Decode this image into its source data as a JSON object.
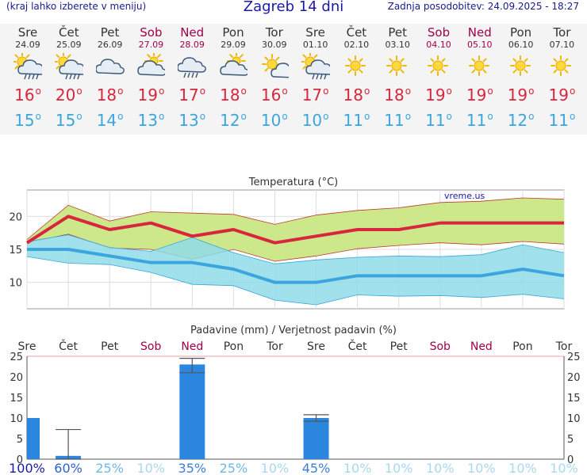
{
  "header": {
    "menu_hint": "(kraj lahko izberete v meniju)",
    "title": "Zagreb 14 dni",
    "updated": "Zadnja posodobitev: 24.09.2025 - 18:27"
  },
  "days": [
    {
      "name": "Sre",
      "date": "24.09",
      "weekend": false,
      "icon": "sun-cloud-rain-icon",
      "tmax": "16",
      "tmin": "15"
    },
    {
      "name": "Čet",
      "date": "25.09",
      "weekend": false,
      "icon": "sun-cloud-rain-icon",
      "tmax": "20",
      "tmin": "15"
    },
    {
      "name": "Pet",
      "date": "26.09",
      "weekend": false,
      "icon": "cloud-icon",
      "tmax": "18",
      "tmin": "14"
    },
    {
      "name": "Sob",
      "date": "27.09",
      "weekend": true,
      "icon": "sun-cloud-icon",
      "tmax": "19",
      "tmin": "13"
    },
    {
      "name": "Ned",
      "date": "28.09",
      "weekend": true,
      "icon": "cloud-rain-icon",
      "tmax": "17",
      "tmin": "13"
    },
    {
      "name": "Pon",
      "date": "29.09",
      "weekend": false,
      "icon": "sun-cloud-icon",
      "tmax": "18",
      "tmin": "12"
    },
    {
      "name": "Tor",
      "date": "30.09",
      "weekend": false,
      "icon": "sun-small-cloud-icon",
      "tmax": "16",
      "tmin": "10"
    },
    {
      "name": "Sre",
      "date": "01.10",
      "weekend": false,
      "icon": "sun-cloud-rain-icon",
      "tmax": "17",
      "tmin": "10"
    },
    {
      "name": "Čet",
      "date": "02.10",
      "weekend": false,
      "icon": "sun-icon",
      "tmax": "18",
      "tmin": "11"
    },
    {
      "name": "Pet",
      "date": "03.10",
      "weekend": false,
      "icon": "sun-icon",
      "tmax": "18",
      "tmin": "11"
    },
    {
      "name": "Sob",
      "date": "04.10",
      "weekend": true,
      "icon": "sun-icon",
      "tmax": "19",
      "tmin": "11"
    },
    {
      "name": "Ned",
      "date": "05.10",
      "weekend": true,
      "icon": "sun-icon",
      "tmax": "19",
      "tmin": "11"
    },
    {
      "name": "Pon",
      "date": "06.10",
      "weekend": false,
      "icon": "sun-icon",
      "tmax": "19",
      "tmin": "12"
    },
    {
      "name": "Tor",
      "date": "07.10",
      "weekend": false,
      "icon": "sun-icon",
      "tmax": "19",
      "tmin": "11"
    }
  ],
  "colors": {
    "max": "#d7263d",
    "min": "#3aa6dd",
    "maxband": "#cde88a",
    "minband": "#8fdce8",
    "bar": "#2b86e0",
    "weekend": "#a0004a"
  },
  "chart_data": [
    {
      "type": "line",
      "title": "Temperatura (°C)",
      "watermark": "vreme.us",
      "x": [
        "24.09",
        "25.09",
        "26.09",
        "27.09",
        "28.09",
        "29.09",
        "30.09",
        "01.10",
        "02.10",
        "03.10",
        "04.10",
        "05.10",
        "06.10",
        "07.10"
      ],
      "ylim": [
        6,
        24
      ],
      "yticks": [
        10,
        15,
        20
      ],
      "grid": true,
      "series": [
        {
          "values": [
            16,
            20,
            18,
            19,
            17,
            18,
            16,
            17,
            18,
            18,
            19,
            19,
            19,
            19
          ],
          "band_upper": [
            16.5,
            21.7,
            19.3,
            20.7,
            20.5,
            20.3,
            18.8,
            20.2,
            20.9,
            21.3,
            22.1,
            22.3,
            22.8,
            22.6
          ],
          "band_lower": [
            16,
            17.3,
            15.2,
            15,
            13.5,
            15,
            13.2,
            14,
            15.1,
            15.6,
            16,
            15.7,
            16.2,
            15.8
          ]
        },
        {
          "values": [
            15,
            15,
            14,
            13,
            13,
            12,
            10,
            10,
            11,
            11,
            11,
            11,
            12,
            11
          ],
          "band_upper": [
            16.2,
            17.2,
            15.3,
            14.7,
            16.8,
            14.5,
            12.8,
            13.4,
            13.8,
            14,
            13.9,
            14.2,
            15.7,
            14.5
          ],
          "band_lower": [
            13.9,
            12.9,
            12.7,
            11.5,
            9.7,
            9.5,
            7.3,
            6.6,
            8.1,
            7.9,
            8,
            7.7,
            8.2,
            7.5
          ]
        }
      ]
    },
    {
      "type": "bar",
      "title": "Padavine (mm) / Verjetnost padavin (%)",
      "categories": [
        "Sre",
        "Čet",
        "Pet",
        "Sob",
        "Ned",
        "Pon",
        "Tor",
        "Sre",
        "Čet",
        "Pet",
        "Sob",
        "Ned",
        "Pon",
        "Tor"
      ],
      "values": [
        10,
        0.8,
        0,
        0,
        23,
        0,
        0,
        10,
        0,
        0,
        0,
        0,
        0,
        0
      ],
      "error_low": [
        null,
        0,
        null,
        null,
        21,
        null,
        null,
        9.2,
        null,
        null,
        null,
        null,
        null,
        null
      ],
      "error_high": [
        null,
        7.2,
        null,
        null,
        24.5,
        null,
        null,
        10.8,
        null,
        null,
        null,
        null,
        null,
        null
      ],
      "probability": [
        "100%",
        "60%",
        "25%",
        "10%",
        "35%",
        "25%",
        "10%",
        "45%",
        "10%",
        "10%",
        "10%",
        "10%",
        "10%",
        "10%"
      ],
      "ylim": [
        0,
        25
      ],
      "yticks": [
        0,
        5,
        10,
        15,
        20,
        25
      ]
    }
  ]
}
